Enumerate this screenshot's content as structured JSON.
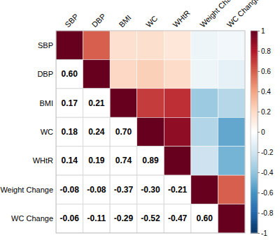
{
  "chart_data": {
    "type": "heatmap",
    "categories": [
      "SBP",
      "DBP",
      "BMI",
      "WC",
      "WHtR",
      "Weight Change",
      "WC Change"
    ],
    "values": [
      [
        1,
        0.6,
        0.17,
        0.18,
        0.14,
        -0.08,
        -0.06
      ],
      [
        0.6,
        1,
        0.21,
        0.24,
        0.19,
        -0.08,
        -0.11
      ],
      [
        0.17,
        0.21,
        1,
        0.7,
        0.74,
        -0.37,
        -0.29
      ],
      [
        0.18,
        0.24,
        0.7,
        1,
        0.89,
        -0.3,
        -0.52
      ],
      [
        0.14,
        0.19,
        0.74,
        0.89,
        1,
        -0.21,
        -0.47
      ],
      [
        -0.08,
        -0.08,
        -0.37,
        -0.3,
        -0.21,
        1,
        0.6
      ],
      [
        -0.06,
        -0.11,
        -0.29,
        -0.52,
        -0.47,
        0.6,
        1
      ]
    ],
    "value_labels": [
      [
        null,
        null,
        null,
        null,
        null,
        null,
        null
      ],
      [
        "0.60",
        null,
        null,
        null,
        null,
        null,
        null
      ],
      [
        "0.17",
        "0.21",
        null,
        null,
        null,
        null,
        null
      ],
      [
        "0.18",
        "0.24",
        "0.70",
        null,
        null,
        null,
        null
      ],
      [
        "0.14",
        "0.19",
        "0.74",
        "0.89",
        null,
        null,
        null
      ],
      [
        "-0.08",
        "-0.08",
        "-0.37",
        "-0.30",
        "-0.21",
        null,
        null
      ],
      [
        "-0.06",
        "-0.11",
        "-0.29",
        "-0.52",
        "-0.47",
        "0.60",
        null
      ]
    ],
    "colorbar": {
      "range": [
        -1,
        1
      ],
      "ticks": [
        -1,
        -0.8,
        -0.6,
        -0.4,
        -0.2,
        0,
        0.2,
        0.4,
        0.6,
        0.8,
        1
      ]
    }
  }
}
